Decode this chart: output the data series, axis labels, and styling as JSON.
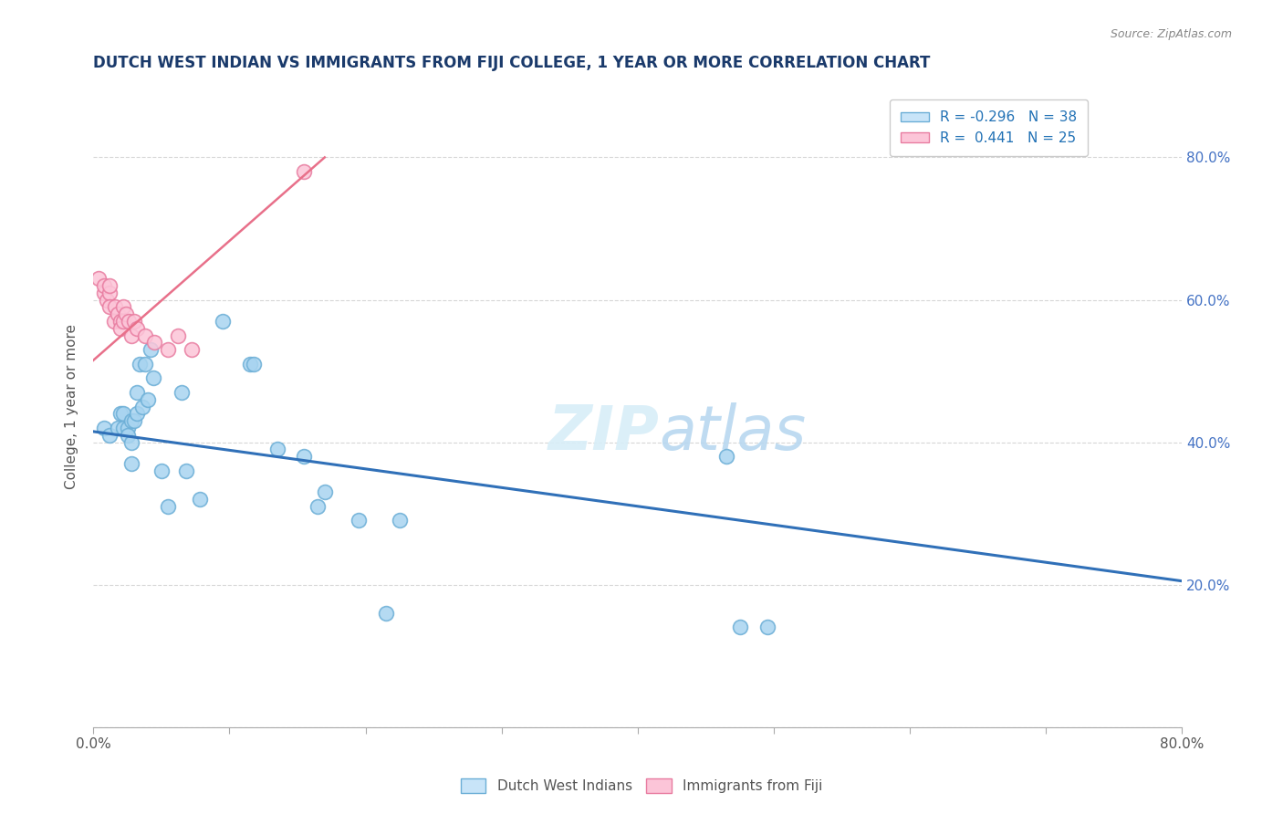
{
  "title": "DUTCH WEST INDIAN VS IMMIGRANTS FROM FIJI COLLEGE, 1 YEAR OR MORE CORRELATION CHART",
  "source": "Source: ZipAtlas.com",
  "xlabel": "",
  "ylabel": "College, 1 year or more",
  "xlim": [
    0.0,
    0.8
  ],
  "ylim": [
    0.0,
    0.9
  ],
  "x_ticks": [
    0.0,
    0.1,
    0.2,
    0.3,
    0.4,
    0.5,
    0.6,
    0.7,
    0.8
  ],
  "x_tick_labels": [
    "0.0%",
    "",
    "",
    "",
    "",
    "",
    "",
    "",
    "80.0%"
  ],
  "y_ticks_right": [
    0.2,
    0.4,
    0.6,
    0.8
  ],
  "y_tick_labels_right": [
    "20.0%",
    "40.0%",
    "60.0%",
    "80.0%"
  ],
  "legend_blue_label": "Dutch West Indians",
  "legend_pink_label": "Immigrants from Fiji",
  "r_blue": "-0.296",
  "n_blue": "38",
  "r_pink": "0.441",
  "n_pink": "25",
  "blue_marker_color": "#a8d4f0",
  "blue_edge_color": "#6baed6",
  "pink_marker_color": "#fcc5d8",
  "pink_edge_color": "#e87ca0",
  "blue_line_color": "#3070b8",
  "pink_line_color": "#e8708a",
  "watermark_color": "#d8eef8",
  "blue_scatter_x": [
    0.008,
    0.012,
    0.018,
    0.02,
    0.022,
    0.022,
    0.025,
    0.025,
    0.028,
    0.028,
    0.028,
    0.03,
    0.032,
    0.032,
    0.034,
    0.036,
    0.038,
    0.04,
    0.042,
    0.044,
    0.05,
    0.055,
    0.065,
    0.068,
    0.078,
    0.095,
    0.115,
    0.118,
    0.135,
    0.155,
    0.165,
    0.17,
    0.195,
    0.215,
    0.225,
    0.465,
    0.475,
    0.495
  ],
  "blue_scatter_y": [
    0.42,
    0.41,
    0.42,
    0.44,
    0.42,
    0.44,
    0.42,
    0.41,
    0.43,
    0.4,
    0.37,
    0.43,
    0.47,
    0.44,
    0.51,
    0.45,
    0.51,
    0.46,
    0.53,
    0.49,
    0.36,
    0.31,
    0.47,
    0.36,
    0.32,
    0.57,
    0.51,
    0.51,
    0.39,
    0.38,
    0.31,
    0.33,
    0.29,
    0.16,
    0.29,
    0.38,
    0.14,
    0.14
  ],
  "pink_scatter_x": [
    0.004,
    0.008,
    0.008,
    0.01,
    0.012,
    0.012,
    0.012,
    0.015,
    0.016,
    0.018,
    0.02,
    0.02,
    0.022,
    0.022,
    0.024,
    0.026,
    0.028,
    0.03,
    0.032,
    0.038,
    0.045,
    0.055,
    0.062,
    0.072,
    0.155
  ],
  "pink_scatter_y": [
    0.63,
    0.61,
    0.62,
    0.6,
    0.61,
    0.59,
    0.62,
    0.57,
    0.59,
    0.58,
    0.57,
    0.56,
    0.59,
    0.57,
    0.58,
    0.57,
    0.55,
    0.57,
    0.56,
    0.55,
    0.54,
    0.53,
    0.55,
    0.53,
    0.78
  ],
  "blue_trend_x": [
    0.0,
    0.8
  ],
  "blue_trend_y": [
    0.415,
    0.205
  ],
  "pink_trend_x": [
    0.0,
    0.17
  ],
  "pink_trend_y": [
    0.515,
    0.8
  ]
}
